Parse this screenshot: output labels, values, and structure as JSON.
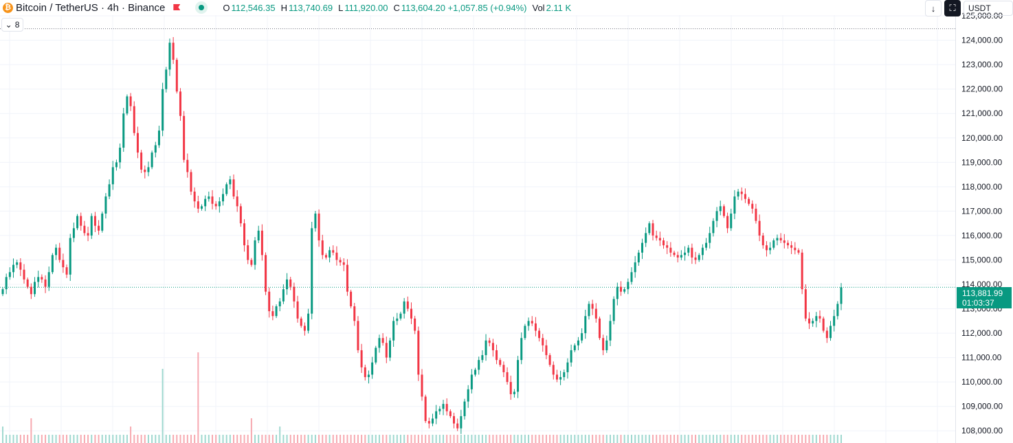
{
  "header": {
    "symbol": "Bitcoin / TetherUS · 4h · Binance",
    "coin_icon": "bitcoin-icon",
    "ohlc": [
      {
        "key": "O",
        "value": "112,546.35"
      },
      {
        "key": "H",
        "value": "113,740.69"
      },
      {
        "key": "L",
        "value": "111,920.00"
      },
      {
        "key": "C",
        "value": "113,604.20 +1,057.85 (+0.94%)"
      },
      {
        "key": "Vol",
        "value": "2.11 K"
      }
    ],
    "collapse_label": "8",
    "currency": "USDT"
  },
  "colors": {
    "up": "#089981",
    "down": "#f23645",
    "grid": "#f0f3fa"
  },
  "price_tag": {
    "price": "113,881.99",
    "countdown": "01:03:37"
  },
  "chart_data": {
    "type": "candlestick",
    "symbol": "BTCUSDT",
    "interval": "4h",
    "ylim": [
      107500,
      125650
    ],
    "yticks": [
      "125,000.00",
      "124,000.00",
      "123,000.00",
      "122,000.00",
      "121,000.00",
      "120,000.00",
      "119,000.00",
      "118,000.00",
      "117,000.00",
      "116,000.00",
      "115,000.00",
      "114,000.00",
      "113,000.00",
      "112,000.00",
      "111,000.00",
      "110,000.00",
      "109,000.00",
      "108,000.00"
    ],
    "ytick_values": [
      125000,
      124000,
      123000,
      122000,
      121000,
      120000,
      119000,
      118000,
      117000,
      116000,
      115000,
      114000,
      113000,
      112000,
      111000,
      110000,
      109000,
      108000
    ],
    "high_line": 124474,
    "last_price": 113881.99,
    "close_path": [
      113800,
      114300,
      114500,
      114800,
      114900,
      114600,
      114200,
      113900,
      113600,
      114100,
      114300,
      114200,
      113900,
      114500,
      115200,
      115500,
      115000,
      114700,
      114400,
      115900,
      116300,
      116800,
      116400,
      116100,
      116000,
      116800,
      116400,
      116200,
      116900,
      117600,
      118100,
      118800,
      119000,
      119600,
      121000,
      121700,
      121300,
      120200,
      119400,
      118700,
      118600,
      118800,
      119400,
      119700,
      120300,
      122000,
      122800,
      123900,
      123200,
      121900,
      120900,
      119100,
      118600,
      117800,
      117400,
      117100,
      117200,
      117500,
      117600,
      117300,
      117200,
      117400,
      117700,
      118100,
      118300,
      117600,
      117200,
      116500,
      115600,
      115000,
      114800,
      115800,
      116200,
      115200,
      113700,
      112900,
      112700,
      113100,
      113300,
      113800,
      114200,
      113900,
      113300,
      112600,
      112300,
      112100,
      112800,
      116300,
      116900,
      115800,
      115200,
      115100,
      115400,
      115300,
      115000,
      114900,
      114800,
      113700,
      113100,
      112500,
      111300,
      110600,
      110200,
      110300,
      110800,
      111400,
      111800,
      111600,
      111000,
      111700,
      112500,
      112600,
      112800,
      113300,
      113000,
      112600,
      112100,
      110300,
      109400,
      108400,
      108300,
      108500,
      108800,
      108900,
      109100,
      108800,
      108600,
      108300,
      108100,
      108600,
      109200,
      109700,
      110300,
      110500,
      110900,
      111100,
      111700,
      111600,
      111300,
      110900,
      110700,
      110400,
      110000,
      109500,
      109600,
      110900,
      111800,
      112300,
      112500,
      112400,
      112100,
      111800,
      111500,
      111100,
      110700,
      110300,
      110100,
      110200,
      110400,
      110800,
      111300,
      111500,
      111700,
      112000,
      112700,
      113200,
      113000,
      112600,
      111800,
      111300,
      111700,
      112500,
      113400,
      113900,
      113700,
      113800,
      114100,
      114500,
      114900,
      115300,
      115700,
      116100,
      116500,
      116000,
      115900,
      115800,
      115600,
      115500,
      115300,
      115200,
      115100,
      115200,
      115300,
      115500,
      115100,
      115000,
      115200,
      115500,
      115700,
      116100,
      116600,
      117000,
      117200,
      116800,
      116300,
      116900,
      117600,
      117800,
      117700,
      117500,
      117300,
      117100,
      116600,
      116000,
      115600,
      115400,
      115500,
      115800,
      115900,
      115800,
      115700,
      115600,
      115500,
      115400,
      115300,
      113800,
      112600,
      112400,
      112500,
      112700,
      112600,
      112100,
      111800,
      112300,
      112700,
      113200,
      113881.99
    ],
    "volume": [
      2,
      1,
      1,
      1,
      1,
      1,
      1,
      1,
      3,
      1,
      1,
      1,
      1,
      1,
      1,
      1,
      1,
      1,
      1,
      1,
      1,
      1,
      1,
      1,
      1,
      1,
      1,
      1,
      1,
      1,
      1,
      1,
      1,
      1,
      1,
      1,
      2,
      1,
      1,
      1,
      1,
      1,
      1,
      1,
      1,
      9,
      1,
      1,
      1,
      1,
      1,
      1,
      1,
      1,
      1,
      11,
      1,
      1,
      1,
      1,
      1,
      1,
      1,
      1,
      1,
      1,
      1,
      1,
      1,
      1,
      3,
      1,
      1,
      1,
      1,
      1,
      1,
      1,
      2,
      1,
      1,
      1,
      1,
      1,
      1,
      1,
      1,
      1,
      1,
      1,
      1,
      1,
      1,
      1,
      1,
      1,
      1,
      1,
      1,
      1,
      1,
      1,
      1,
      1,
      1,
      1,
      1,
      1,
      1,
      1,
      1,
      1,
      1,
      1,
      1,
      1,
      1,
      1,
      1,
      1,
      1,
      1,
      1,
      1,
      1,
      1,
      1,
      1,
      1,
      1,
      1,
      1,
      1,
      1,
      1,
      1,
      1,
      1,
      1,
      1,
      1,
      1,
      1,
      1,
      1,
      1,
      1,
      1,
      1,
      1,
      1,
      1,
      1,
      1,
      1,
      1,
      1,
      1,
      1,
      1,
      1,
      1,
      1,
      1,
      1,
      1,
      1,
      1,
      1,
      1,
      1,
      1,
      1,
      1,
      1,
      1,
      1,
      1,
      1,
      1,
      1,
      1,
      1,
      1,
      1,
      1,
      1,
      1,
      1,
      1,
      1,
      1,
      1,
      1,
      1,
      1,
      1,
      1,
      1,
      1,
      1,
      1,
      1,
      1,
      1,
      1,
      1,
      1,
      1,
      1,
      1,
      1,
      1,
      1,
      1,
      1,
      1,
      1,
      1,
      1,
      1,
      1,
      1,
      1,
      1,
      1,
      1,
      1,
      1,
      1,
      1,
      1,
      1,
      1,
      1,
      1,
      1,
      1,
      1,
      1,
      1,
      1,
      1,
      1,
      1,
      1,
      1,
      1,
      1,
      1,
      1,
      1,
      1,
      1,
      1,
      1,
      1
    ]
  }
}
